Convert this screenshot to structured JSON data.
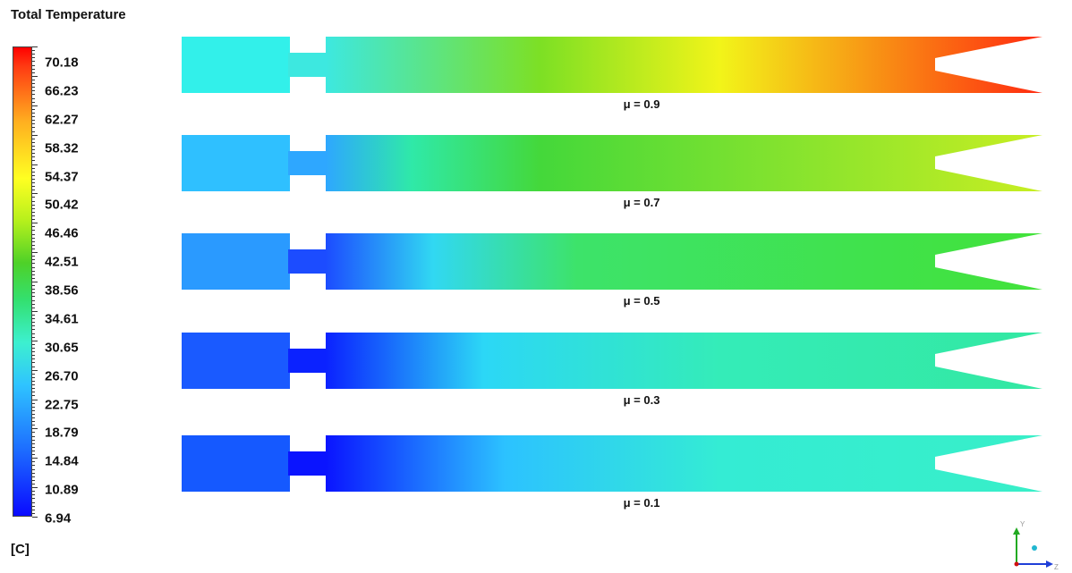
{
  "legend": {
    "title": "Total Temperature",
    "unit": "[C]",
    "ticks": [
      "70.18",
      "66.23",
      "62.27",
      "58.32",
      "54.37",
      "50.42",
      "46.46",
      "42.51",
      "38.56",
      "34.61",
      "30.65",
      "26.70",
      "22.75",
      "18.79",
      "14.84",
      "10.89",
      "6.94"
    ]
  },
  "cases": [
    {
      "label": "μ = 0.9",
      "inlet": "#32f0ea",
      "nozzle": "#3de8e0",
      "mid": "#7de024",
      "mid_pos": 0.3,
      "mid2": "#f2f419",
      "mid2_pos": 0.55,
      "outlet": "#ff2a10",
      "tip": "#ff1a10"
    },
    {
      "label": "μ = 0.7",
      "inlet": "#2fc0ff",
      "nozzle": "#2ea7ff",
      "mid": "#2fe9a8",
      "mid_pos": 0.12,
      "mid2": "#44d83a",
      "mid2_pos": 0.3,
      "outlet": "#c8ee22",
      "tip": "#c8f020"
    },
    {
      "label": "μ = 0.5",
      "inlet": "#2a9aff",
      "nozzle": "#1c4cff",
      "mid": "#31d8f2",
      "mid_pos": 0.15,
      "mid2": "#3de36a",
      "mid2_pos": 0.35,
      "outlet": "#42e23a",
      "tip": "#40dd3c"
    },
    {
      "label": "μ = 0.3",
      "inlet": "#1a5aff",
      "nozzle": "#0b22ff",
      "mid": "#2cd7f6",
      "mid_pos": 0.22,
      "mid2": "#34ecb8",
      "mid2_pos": 0.55,
      "outlet": "#33e8a2",
      "tip": "#33e8a2"
    },
    {
      "label": "μ = 0.1",
      "inlet": "#1559ff",
      "nozzle": "#0a14ff",
      "mid": "#2cc2ff",
      "mid_pos": 0.25,
      "mid2": "#34ecd4",
      "mid2_pos": 0.55,
      "outlet": "#38efc8",
      "tip": "#38efc8"
    }
  ],
  "axes": {
    "y": "Y",
    "z": "Z"
  }
}
